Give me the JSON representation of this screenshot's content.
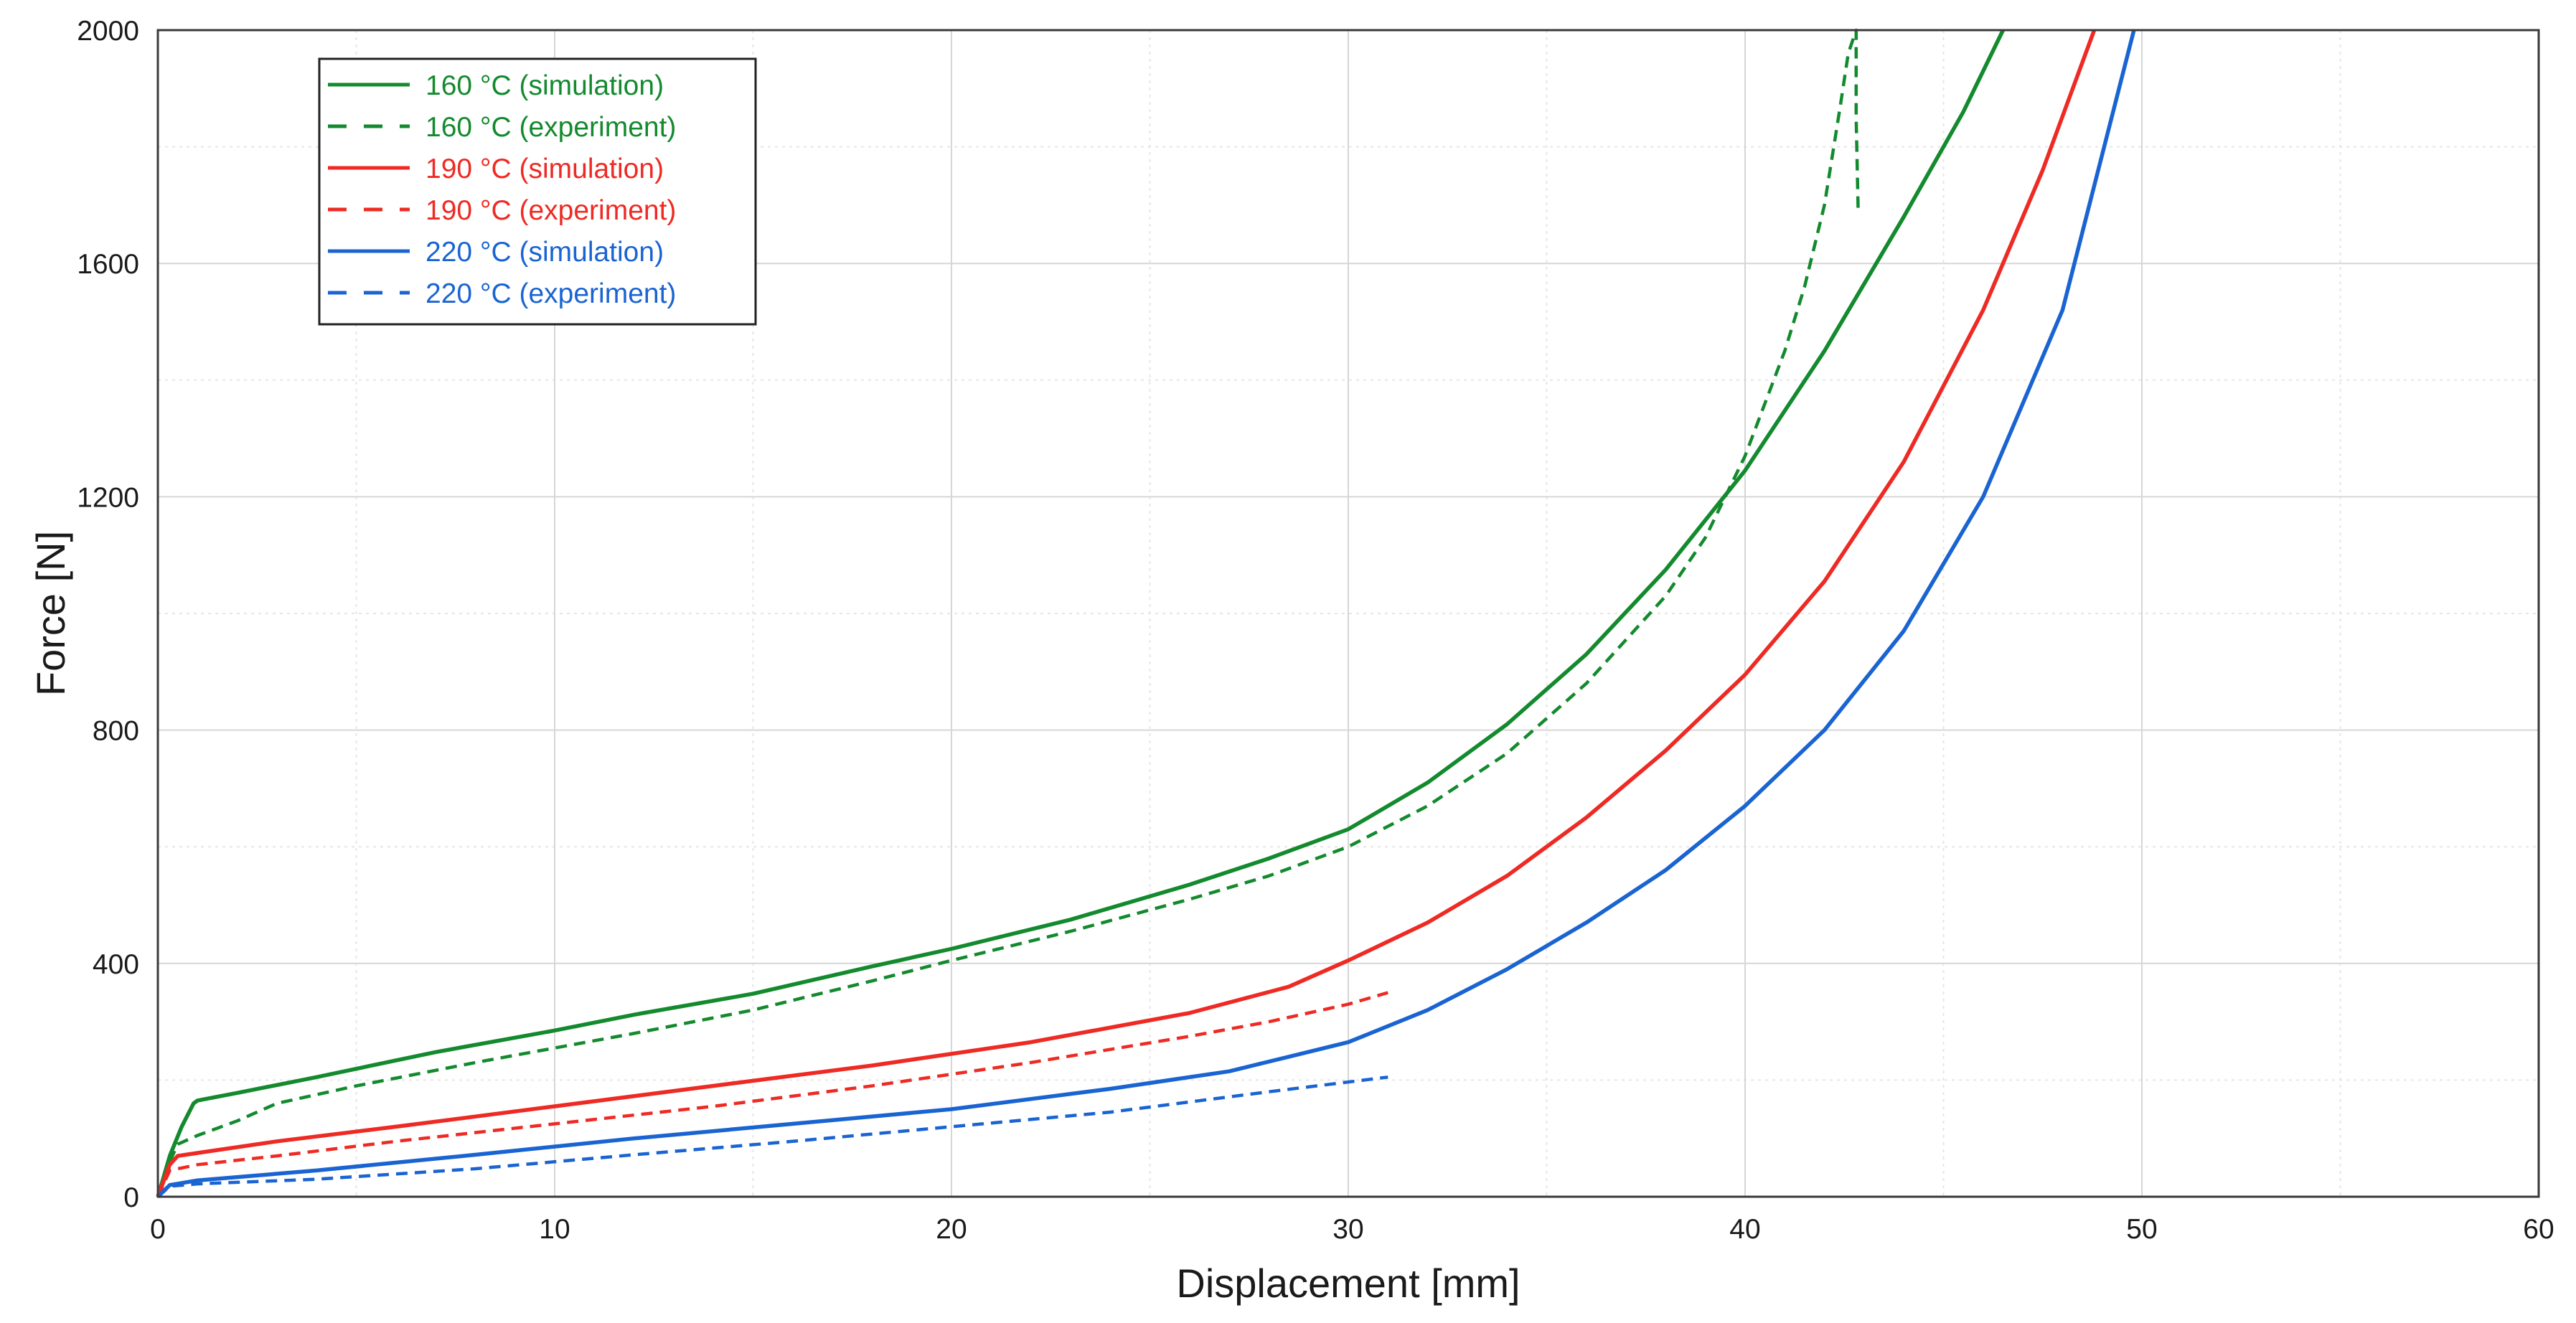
{
  "chart_data": {
    "type": "line",
    "title": "",
    "xlabel": "Displacement [mm]",
    "ylabel": "Force [N]",
    "xlim": [
      0,
      60
    ],
    "ylim": [
      0,
      2000
    ],
    "x_major_ticks": [
      0,
      10,
      20,
      30,
      40,
      50,
      60
    ],
    "y_major_ticks": [
      0,
      400,
      800,
      1200,
      1600,
      2000
    ],
    "x_minor_ticks": [
      5,
      15,
      25,
      35,
      45,
      55
    ],
    "y_minor_ticks": [
      200,
      600,
      1000,
      1400,
      1800
    ],
    "grid": true,
    "legend_position": "top-left",
    "colors": {
      "green": "#138a2e",
      "red": "#ee2a24",
      "blue": "#1a64d2"
    },
    "series": [
      {
        "name": "160 °C (simulation)",
        "color": "#138a2e",
        "style": "solid",
        "x": [
          0,
          0.3,
          0.6,
          0.9,
          1.0,
          2,
          4,
          7,
          10,
          12,
          15,
          18,
          20,
          23,
          26,
          28,
          30,
          32,
          34,
          36,
          38,
          40,
          42,
          44,
          45.5,
          46.5
        ],
        "y": [
          0,
          70,
          120,
          160,
          165,
          178,
          205,
          248,
          285,
          312,
          348,
          395,
          425,
          475,
          535,
          580,
          630,
          710,
          810,
          930,
          1075,
          1245,
          1450,
          1680,
          1860,
          2000
        ]
      },
      {
        "name": "160 °C (experiment)",
        "color": "#138a2e",
        "style": "dashed",
        "x": [
          0,
          0.3,
          0.5,
          1,
          2,
          3,
          5,
          8,
          12,
          15,
          18,
          20,
          23,
          26,
          28,
          30,
          32,
          34,
          36,
          38,
          39,
          40,
          41,
          41.5,
          42,
          42.4,
          42.6,
          42.8,
          42.8,
          42.85
        ],
        "y": [
          0,
          60,
          90,
          105,
          130,
          160,
          190,
          230,
          280,
          320,
          370,
          405,
          455,
          510,
          550,
          600,
          670,
          760,
          880,
          1030,
          1130,
          1270,
          1450,
          1560,
          1700,
          1870,
          1960,
          2000,
          1850,
          1690
        ]
      },
      {
        "name": "190 °C (simulation)",
        "color": "#ee2a24",
        "style": "solid",
        "x": [
          0,
          0.3,
          0.5,
          1,
          3,
          6,
          10,
          14,
          18,
          22,
          26,
          28.5,
          30,
          32,
          34,
          36,
          38,
          40,
          42,
          44,
          46,
          47.5,
          48.8
        ],
        "y": [
          0,
          55,
          70,
          75,
          95,
          120,
          155,
          190,
          225,
          265,
          315,
          360,
          405,
          470,
          550,
          650,
          765,
          895,
          1055,
          1260,
          1520,
          1760,
          2000
        ]
      },
      {
        "name": "190 °C (experiment)",
        "color": "#ee2a24",
        "style": "dashed",
        "x": [
          0,
          0.3,
          1,
          3,
          6,
          10,
          14,
          18,
          22,
          26,
          28,
          30,
          31
        ],
        "y": [
          0,
          45,
          55,
          70,
          95,
          125,
          155,
          190,
          230,
          275,
          300,
          330,
          350
        ]
      },
      {
        "name": "220 °C (simulation)",
        "color": "#1a64d2",
        "style": "solid",
        "x": [
          0,
          0.3,
          1,
          4,
          8,
          12,
          16,
          20,
          24,
          27,
          28.5,
          30,
          32,
          34,
          36,
          38,
          40,
          42,
          44,
          46,
          48,
          49.8
        ],
        "y": [
          0,
          20,
          28,
          45,
          72,
          100,
          125,
          150,
          185,
          215,
          240,
          265,
          320,
          390,
          470,
          560,
          670,
          800,
          970,
          1200,
          1520,
          2000
        ]
      },
      {
        "name": "220 °C (experiment)",
        "color": "#1a64d2",
        "style": "dashed",
        "x": [
          0,
          0.3,
          1,
          4,
          8,
          12,
          16,
          20,
          24,
          28,
          31
        ],
        "y": [
          0,
          18,
          22,
          30,
          48,
          72,
          95,
          120,
          145,
          180,
          205
        ]
      }
    ]
  }
}
